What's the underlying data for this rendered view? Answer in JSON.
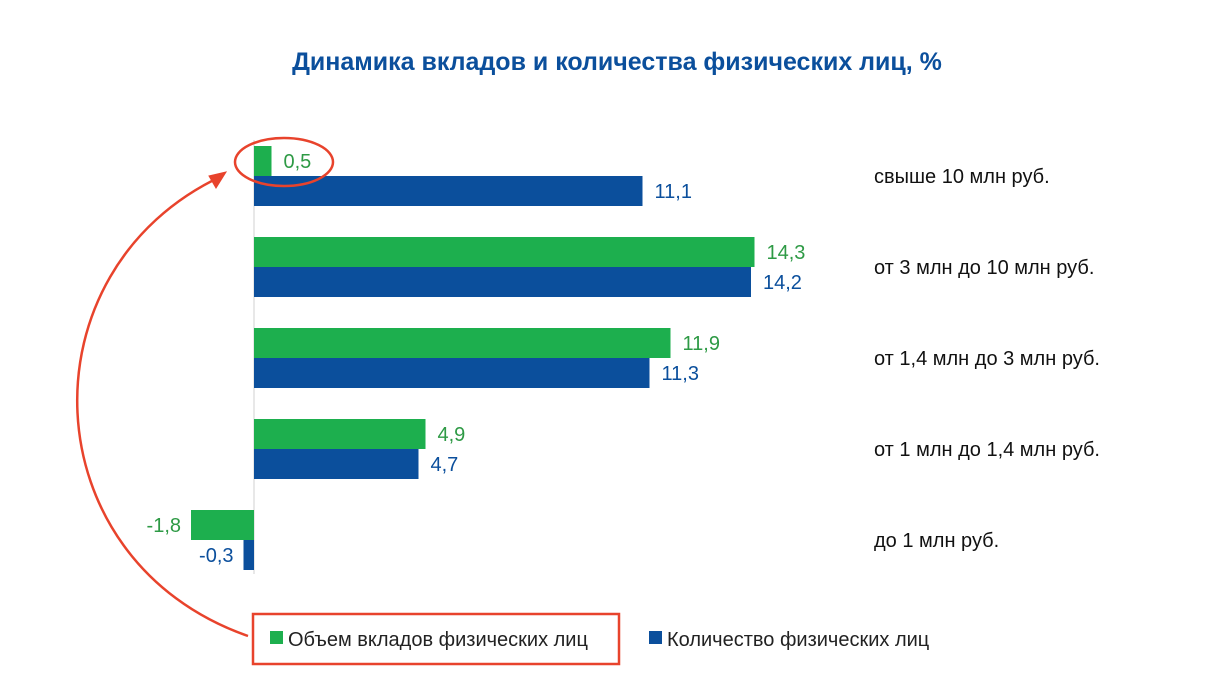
{
  "chart_data": {
    "type": "bar",
    "orientation": "horizontal",
    "title": "Динамика вкладов и количества физических лиц, %",
    "categories": [
      "свыше 10 млн руб.",
      "от 3 млн до 10 млн руб.",
      "от 1,4 млн до 3 млн руб.",
      "от 1 млн до 1,4 млн руб.",
      "до 1 млн руб."
    ],
    "series": [
      {
        "name": "Объем вкладов физических лиц",
        "values": [
          0.5,
          14.3,
          11.9,
          4.9,
          -1.8
        ],
        "labels": [
          "0,5",
          "14,3",
          "11,9",
          "4,9",
          "-1,8"
        ],
        "color": "#1DAF4E",
        "label_color": "#2E9A45"
      },
      {
        "name": "Количество физических лиц",
        "values": [
          11.1,
          14.2,
          11.3,
          4.7,
          -0.3
        ],
        "labels": [
          "11,1",
          "14,2",
          "11,3",
          "4,7",
          "-0,3"
        ],
        "color": "#0B4F9C",
        "label_color": "#0B4F9C"
      }
    ],
    "xlim": [
      -1.8,
      14.3
    ],
    "grid": false,
    "legend_position": "bottom-left",
    "title_color": "#0B4F9C",
    "annotation_color": "#E8432C"
  }
}
